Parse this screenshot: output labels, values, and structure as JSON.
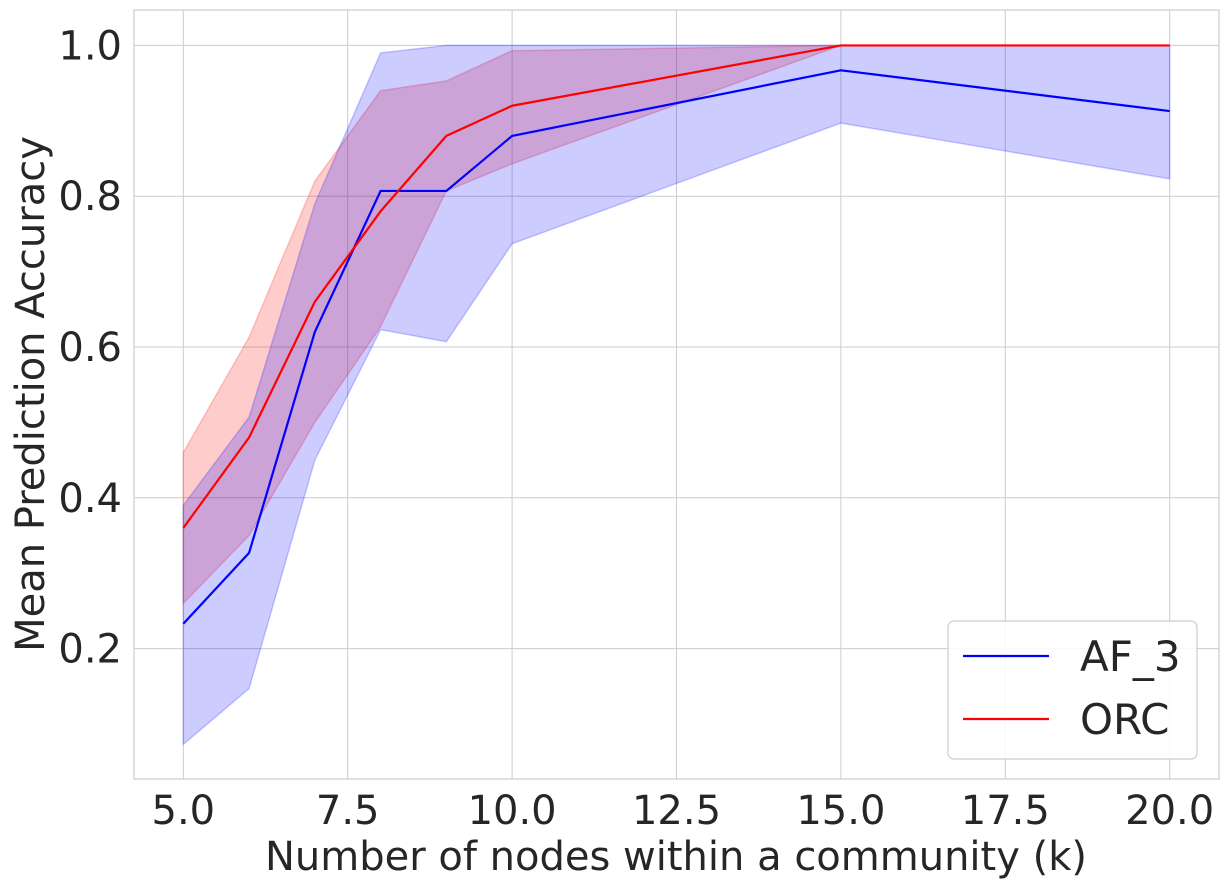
{
  "chart_data": {
    "type": "line",
    "title": "",
    "xlabel": "Number of nodes within a community (k)",
    "ylabel": "Mean Prediction Accuracy",
    "xlim": [
      4.25,
      20.75
    ],
    "ylim": [
      0.027,
      1.047
    ],
    "x_ticks": [
      5.0,
      7.5,
      10.0,
      12.5,
      15.0,
      17.5,
      20.0
    ],
    "x_tick_labels": [
      "5.0",
      "7.5",
      "10.0",
      "12.5",
      "15.0",
      "17.5",
      "20.0"
    ],
    "y_ticks": [
      0.2,
      0.4,
      0.6,
      0.8,
      1.0
    ],
    "y_tick_labels": [
      "0.2",
      "0.4",
      "0.6",
      "0.8",
      "1.0"
    ],
    "grid": true,
    "legend_position": "lower-right",
    "series": [
      {
        "name": "AF_3",
        "color": "#0000ff",
        "band_color": "#0000ff",
        "x": [
          5,
          6,
          7,
          8,
          9,
          10,
          15,
          20
        ],
        "values": [
          0.233,
          0.327,
          0.62,
          0.807,
          0.807,
          0.88,
          0.967,
          0.913
        ],
        "lower": [
          0.073,
          0.147,
          0.45,
          0.623,
          0.607,
          0.737,
          0.897,
          0.823
        ],
        "upper": [
          0.39,
          0.507,
          0.79,
          0.99,
          1.0,
          1.0,
          1.0,
          1.0
        ]
      },
      {
        "name": "ORC",
        "color": "#ff0000",
        "band_color": "#ff0000",
        "x": [
          5,
          6,
          7,
          8,
          9,
          10,
          15,
          20
        ],
        "values": [
          0.36,
          0.48,
          0.66,
          0.78,
          0.88,
          0.92,
          1.0,
          1.0
        ],
        "lower": [
          0.26,
          0.35,
          0.5,
          0.627,
          0.807,
          0.843,
          1.0,
          1.0
        ],
        "upper": [
          0.46,
          0.613,
          0.82,
          0.94,
          0.953,
          0.993,
          1.0,
          1.0
        ]
      }
    ]
  }
}
